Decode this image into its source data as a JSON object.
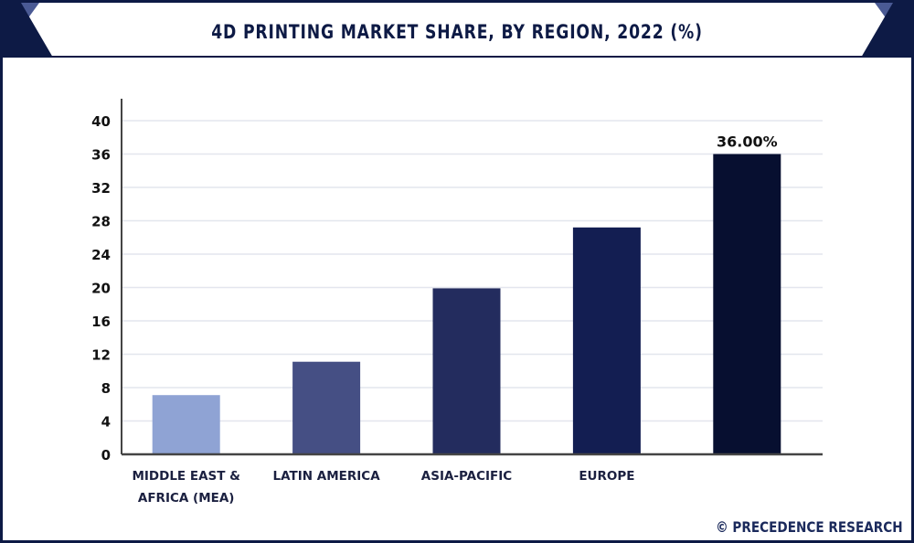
{
  "chart_data": {
    "type": "bar",
    "title": "4D PRINTING MARKET SHARE, BY REGION, 2022 (%)",
    "categories": [
      "MIDDLE EAST & AFRICA (MEA)",
      "LATIN AMERICA",
      "ASIA-PACIFIC",
      "EUROPE",
      ""
    ],
    "values": [
      7.1,
      11.1,
      19.9,
      27.2,
      36.0
    ],
    "data_labels": [
      "",
      "",
      "",
      "",
      "36.00%"
    ],
    "colors": [
      "#8fa3d4",
      "#454f84",
      "#232c5e",
      "#131e52",
      "#070f30"
    ],
    "xlabel": "",
    "ylabel": "",
    "ylim": [
      0,
      40
    ],
    "yticks": [
      0,
      4,
      8,
      12,
      16,
      20,
      24,
      28,
      32,
      36,
      40
    ],
    "grid": true,
    "legend": "none"
  },
  "credit": "© PRECEDENCE RESEARCH",
  "colors": {
    "frame": "#0d1a45",
    "accent": "#4a5a94"
  }
}
